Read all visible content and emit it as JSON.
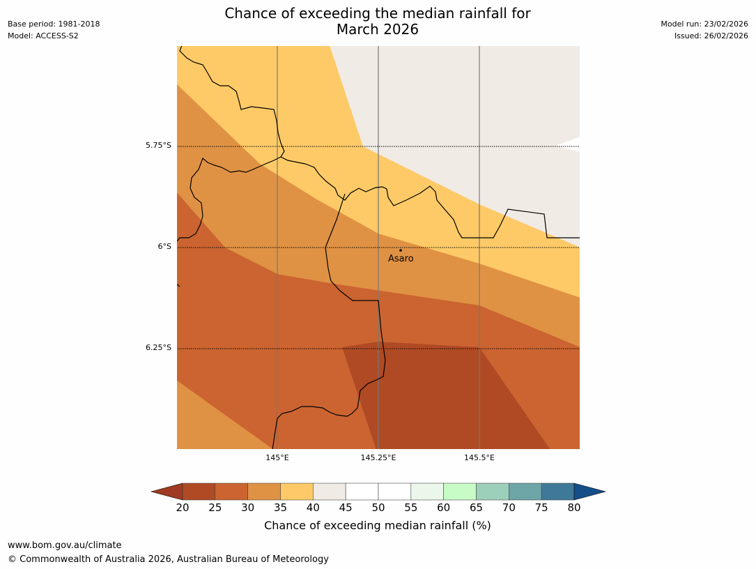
{
  "title_line1": "Chance of exceeding the median rainfall for",
  "title_line2": "March 2026",
  "meta_left": {
    "base_period": "Base period: 1981-2018",
    "model": "Model: ACCESS-S2"
  },
  "meta_right": {
    "model_run": "Model run: 23/02/2026",
    "issued": "Issued: 26/02/2026"
  },
  "map": {
    "lat_labels": [
      "5.75°S",
      "6°S",
      "6.25°S"
    ],
    "lon_labels": [
      "145°E",
      "145.25°E",
      "145.5°E"
    ],
    "place": "Asaro"
  },
  "colorbar": {
    "ticks": [
      "20",
      "25",
      "30",
      "35",
      "40",
      "45",
      "50",
      "55",
      "60",
      "65",
      "70",
      "75",
      "80"
    ],
    "label": "Chance of exceeding median rainfall (%)",
    "colors": [
      "#a03a22",
      "#b04a24",
      "#cb6430",
      "#e09244",
      "#fdca67",
      "#f0ebe5",
      "#ffffff",
      "#ffffff",
      "#ebf7ea",
      "#c7fcc7",
      "#9dd0bb",
      "#6ea5a6",
      "#3f7999",
      "#154e88"
    ]
  },
  "footer": {
    "url": "www.bom.gov.au/climate",
    "copyright": "© Commonwealth of Australia 2026, Australian Bureau of Meteorology"
  }
}
